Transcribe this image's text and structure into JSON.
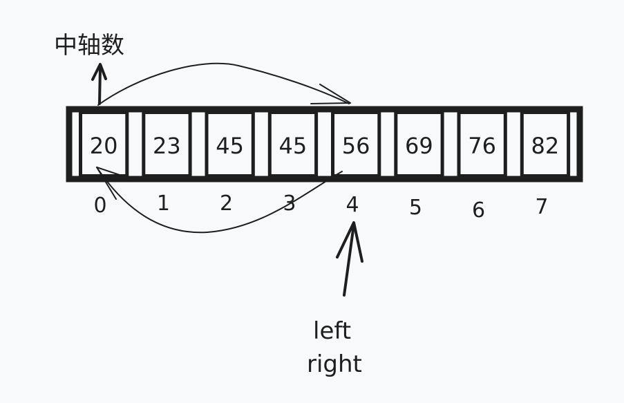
{
  "pivot_label": "中轴数",
  "array": {
    "values": [
      "20",
      "23",
      "45",
      "45",
      "56",
      "69",
      "76",
      "82"
    ],
    "indices": [
      "0",
      "1",
      "2",
      "3",
      "4",
      "5",
      "6",
      "7"
    ]
  },
  "pointer": {
    "left_label": "left",
    "right_label": "right"
  },
  "colors": {
    "ink": "#1e1e1e",
    "background": "#f8f9fa"
  }
}
